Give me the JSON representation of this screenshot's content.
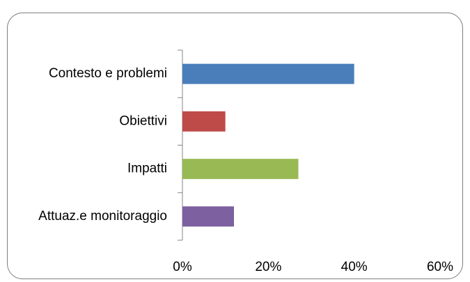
{
  "chart_data": {
    "type": "bar",
    "orientation": "horizontal",
    "categories": [
      "Contesto e problemi",
      "Obiettivi",
      "Impatti",
      "Attuaz.e monitoraggio"
    ],
    "values": [
      40,
      10,
      27,
      12
    ],
    "colors": [
      "#4a7ebb",
      "#be4b48",
      "#98b954",
      "#7d60a0"
    ],
    "xlim": [
      0,
      60
    ],
    "xticks": [
      {
        "value": 0,
        "label": "0%"
      },
      {
        "value": 20,
        "label": "20%"
      },
      {
        "value": 40,
        "label": "40%"
      },
      {
        "value": 60,
        "label": "60%"
      }
    ],
    "grid": false
  }
}
